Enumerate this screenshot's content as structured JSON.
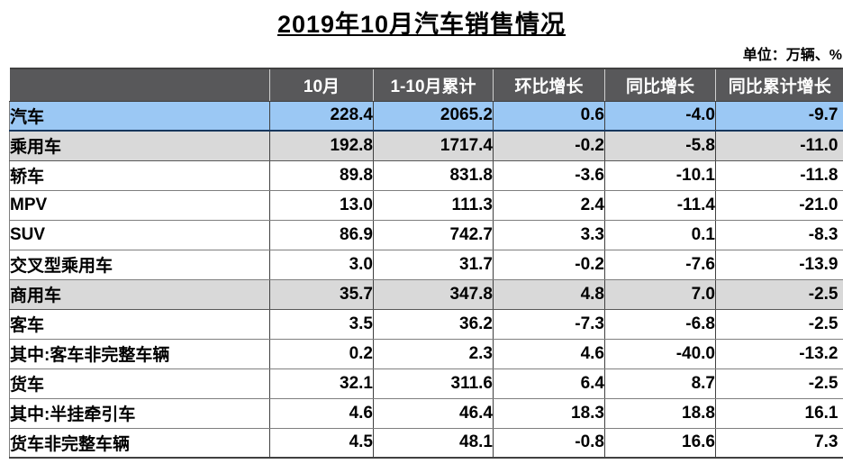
{
  "colors": {
    "header_bg": "#58585a",
    "header_text": "#ffffff",
    "highlight_row": "#9bc8f4",
    "subtotal_row": "#d9d9d9",
    "highlight_underline": "#17375d"
  },
  "chart_data": {
    "type": "table",
    "title": "2019年10月汽车销售情况",
    "unit_label": "单位：万辆、%",
    "columns": [
      "",
      "10月",
      "1-10月累计",
      "环比增长",
      "同比增长",
      "同比累计增长"
    ],
    "rows": [
      {
        "label": "汽车",
        "indent": 0,
        "emphasis": "highlight",
        "values": [
          228.4,
          2065.2,
          0.6,
          -4.0,
          -9.7
        ]
      },
      {
        "label": "乘用车",
        "indent": 1,
        "emphasis": "subtotal",
        "values": [
          192.8,
          1717.4,
          -0.2,
          -5.8,
          -11.0
        ]
      },
      {
        "label": "轿车",
        "indent": 2,
        "emphasis": "plain",
        "values": [
          89.8,
          831.8,
          -3.6,
          -10.1,
          -11.8
        ]
      },
      {
        "label": "MPV",
        "indent": 2,
        "emphasis": "plain",
        "values": [
          13.0,
          111.3,
          2.4,
          -11.4,
          -21.0
        ]
      },
      {
        "label": "SUV",
        "indent": 2,
        "emphasis": "plain",
        "values": [
          86.9,
          742.7,
          3.3,
          0.1,
          -8.3
        ]
      },
      {
        "label": "交叉型乘用车",
        "indent": 2,
        "emphasis": "plain",
        "values": [
          3.0,
          31.7,
          -0.2,
          -7.6,
          -13.9
        ]
      },
      {
        "label": "商用车",
        "indent": 1,
        "emphasis": "subtotal",
        "values": [
          35.7,
          347.8,
          4.8,
          7.0,
          -2.5
        ]
      },
      {
        "label": "客车",
        "indent": 2,
        "emphasis": "plain",
        "values": [
          3.5,
          36.2,
          -7.3,
          -6.8,
          -2.5
        ]
      },
      {
        "label": "其中:客车非完整车辆",
        "indent": 3,
        "emphasis": "plain",
        "values": [
          0.2,
          2.3,
          4.6,
          -40.0,
          -13.2
        ]
      },
      {
        "label": "货车",
        "indent": 2,
        "emphasis": "plain",
        "values": [
          32.1,
          311.6,
          6.4,
          8.7,
          -2.5
        ]
      },
      {
        "label": "其中:半挂牵引车",
        "indent": 3,
        "emphasis": "plain",
        "values": [
          4.6,
          46.4,
          18.3,
          18.8,
          16.1
        ]
      },
      {
        "label": "货车非完整车辆",
        "indent": 3,
        "emphasis": "plain",
        "values": [
          4.5,
          48.1,
          -0.8,
          16.6,
          7.3
        ]
      }
    ]
  }
}
